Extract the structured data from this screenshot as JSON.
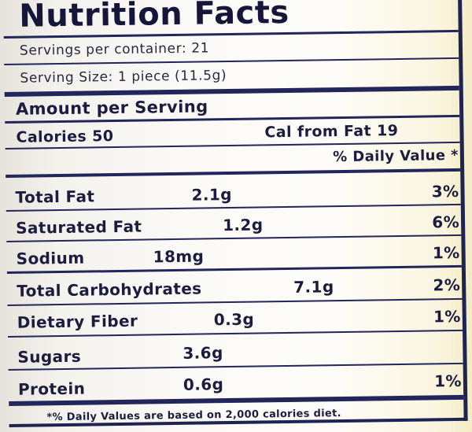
{
  "label": {
    "title": "Nutrition Facts",
    "servings_per_container": "Servings per container: 21",
    "serving_size": "Serving Size: 1 piece (11.5g)",
    "amount_heading": "Amount per Serving",
    "calories": "Calories 50",
    "cal_from_fat": "Cal from Fat 19",
    "daily_value_heading": "% Daily Value *",
    "nutrients": [
      {
        "name": "Total Fat",
        "amount": "2.1g",
        "dv": "3%"
      },
      {
        "name": "Saturated Fat",
        "amount": "1.2g",
        "dv": "6%"
      },
      {
        "name": "Sodium",
        "amount": "18mg",
        "dv": "1%"
      },
      {
        "name": "Total Carbohydrates",
        "amount": "7.1g",
        "dv": "2%"
      },
      {
        "name": "Dietary Fiber",
        "amount": "0.3g",
        "dv": "1%"
      },
      {
        "name": "Sugars",
        "amount": "3.6g",
        "dv": ""
      },
      {
        "name": "Protein",
        "amount": "0.6g",
        "dv": "1%"
      }
    ],
    "footnote": "*% Daily Values are based on 2,000 calories diet."
  }
}
